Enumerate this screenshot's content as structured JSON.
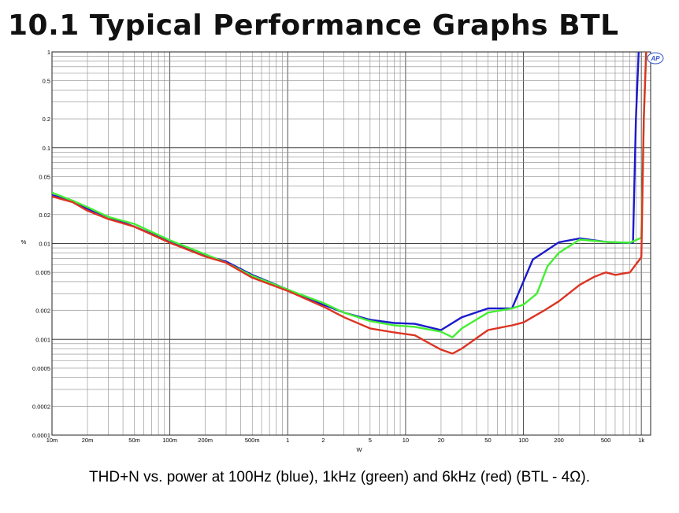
{
  "heading": "10.1 Typical Performance Graphs BTL",
  "caption": "THD+N vs. power at 100Hz (blue), 1kHz (green) and 6kHz (red) (BTL - 4Ω).",
  "logo_text": "AP",
  "chart_data": {
    "type": "line",
    "title": "",
    "xscale": "log",
    "yscale": "log",
    "xlabel": "W",
    "ylabel": "%",
    "xlim": [
      0.01,
      1200
    ],
    "ylim": [
      0.0001,
      1
    ],
    "grid": true,
    "x_ticks": [
      {
        "value": 0.01,
        "label": "10m"
      },
      {
        "value": 0.02,
        "label": "20m"
      },
      {
        "value": 0.05,
        "label": "50m"
      },
      {
        "value": 0.1,
        "label": "100m"
      },
      {
        "value": 0.2,
        "label": "200m"
      },
      {
        "value": 0.5,
        "label": "500m"
      },
      {
        "value": 1,
        "label": "1"
      },
      {
        "value": 2,
        "label": "2"
      },
      {
        "value": 5,
        "label": "5"
      },
      {
        "value": 10,
        "label": "10"
      },
      {
        "value": 20,
        "label": "20"
      },
      {
        "value": 50,
        "label": "50"
      },
      {
        "value": 100,
        "label": "100"
      },
      {
        "value": 200,
        "label": "200"
      },
      {
        "value": 500,
        "label": "500"
      },
      {
        "value": 1000,
        "label": "1k"
      }
    ],
    "y_ticks": [
      {
        "value": 1,
        "label": "1"
      },
      {
        "value": 0.5,
        "label": "0.5"
      },
      {
        "value": 0.2,
        "label": "0.2"
      },
      {
        "value": 0.1,
        "label": "0.1"
      },
      {
        "value": 0.05,
        "label": "0.05"
      },
      {
        "value": 0.02,
        "label": "0.02"
      },
      {
        "value": 0.01,
        "label": "0.01"
      },
      {
        "value": 0.005,
        "label": "0.005"
      },
      {
        "value": 0.002,
        "label": "0.002"
      },
      {
        "value": 0.001,
        "label": "0.001"
      },
      {
        "value": 0.0005,
        "label": "0.0005"
      },
      {
        "value": 0.0002,
        "label": "0.0002"
      },
      {
        "value": 0.0001,
        "label": "0.0001"
      }
    ],
    "series": [
      {
        "name": "100Hz",
        "color": "#1a1acc",
        "x": [
          0.01,
          0.015,
          0.02,
          0.03,
          0.05,
          0.1,
          0.2,
          0.3,
          0.5,
          1,
          2,
          3,
          5,
          8,
          12,
          20,
          30,
          50,
          80,
          120,
          200,
          300,
          500,
          700,
          850,
          900,
          950
        ],
        "y": [
          0.032,
          0.028,
          0.023,
          0.019,
          0.015,
          0.0105,
          0.0075,
          0.0065,
          0.0047,
          0.0033,
          0.0023,
          0.0019,
          0.0016,
          0.00148,
          0.00145,
          0.00125,
          0.0017,
          0.0021,
          0.0021,
          0.0068,
          0.0103,
          0.0113,
          0.0104,
          0.0102,
          0.0102,
          0.2,
          1
        ]
      },
      {
        "name": "1kHz",
        "color": "#44ee33",
        "x": [
          0.01,
          0.015,
          0.02,
          0.03,
          0.05,
          0.1,
          0.2,
          0.3,
          0.5,
          1,
          2,
          3,
          5,
          8,
          12,
          20,
          25,
          30,
          50,
          80,
          100,
          130,
          160,
          200,
          300,
          500,
          800,
          1000,
          1050,
          1100
        ],
        "y": [
          0.034,
          0.028,
          0.024,
          0.019,
          0.016,
          0.0108,
          0.0077,
          0.0063,
          0.0046,
          0.0033,
          0.0024,
          0.0019,
          0.00155,
          0.0014,
          0.00135,
          0.0012,
          0.00105,
          0.0013,
          0.0019,
          0.0021,
          0.0023,
          0.003,
          0.0058,
          0.008,
          0.011,
          0.0104,
          0.0102,
          0.0115,
          0.2,
          1
        ]
      },
      {
        "name": "6kHz",
        "color": "#dd3322",
        "x": [
          0.01,
          0.015,
          0.02,
          0.03,
          0.05,
          0.1,
          0.2,
          0.3,
          0.5,
          1,
          2,
          3,
          5,
          8,
          12,
          20,
          25,
          30,
          50,
          80,
          100,
          150,
          200,
          300,
          400,
          500,
          600,
          800,
          1000,
          1050,
          1100
        ],
        "y": [
          0.031,
          0.027,
          0.022,
          0.018,
          0.015,
          0.0102,
          0.0073,
          0.0063,
          0.0044,
          0.0032,
          0.0022,
          0.0017,
          0.0013,
          0.00118,
          0.0011,
          0.00078,
          0.00071,
          0.0008,
          0.00125,
          0.0014,
          0.0015,
          0.002,
          0.0025,
          0.0037,
          0.0045,
          0.005,
          0.0047,
          0.005,
          0.0072,
          0.2,
          1
        ]
      }
    ]
  }
}
